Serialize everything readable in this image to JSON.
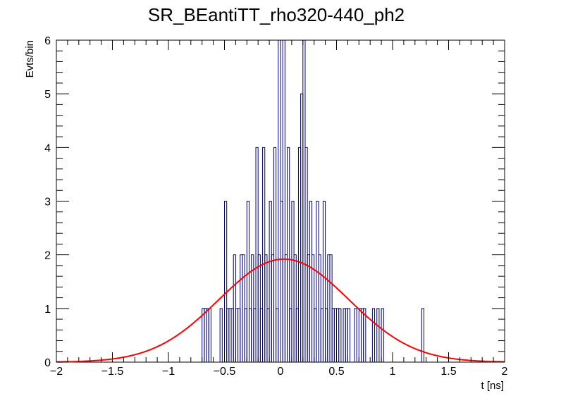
{
  "chart_data": {
    "type": "histogram",
    "title": "SR_BEantiTT_rho320-440_ph2",
    "xlabel": "t [ns]",
    "ylabel": "Evts/bin",
    "xlim": [
      -2,
      2
    ],
    "ylim": [
      0,
      6
    ],
    "x_ticks": [
      -2,
      -1.5,
      -1,
      -0.5,
      0,
      0.5,
      1,
      1.5,
      2
    ],
    "x_tick_labels": [
      "−2",
      "−1.5",
      "−1",
      "−0.5",
      "0",
      "0.5",
      "1",
      "1.5",
      "2"
    ],
    "y_ticks": [
      0,
      1,
      2,
      3,
      4,
      5,
      6
    ],
    "y_tick_labels": [
      "0",
      "1",
      "2",
      "3",
      "4",
      "5",
      "6"
    ],
    "bin_width": 0.02,
    "histogram": {
      "color": "#000080",
      "bins": [
        {
          "x": -0.7,
          "value": 1
        },
        {
          "x": -0.68,
          "value": 1
        },
        {
          "x": -0.66,
          "value": 1
        },
        {
          "x": -0.64,
          "value": 1
        },
        {
          "x": -0.54,
          "value": 1
        },
        {
          "x": -0.5,
          "value": 3
        },
        {
          "x": -0.48,
          "value": 1
        },
        {
          "x": -0.46,
          "value": 1
        },
        {
          "x": -0.44,
          "value": 1
        },
        {
          "x": -0.42,
          "value": 2
        },
        {
          "x": -0.4,
          "value": 1
        },
        {
          "x": -0.38,
          "value": 1
        },
        {
          "x": -0.36,
          "value": 2
        },
        {
          "x": -0.34,
          "value": 2
        },
        {
          "x": -0.32,
          "value": 1
        },
        {
          "x": -0.3,
          "value": 3
        },
        {
          "x": -0.28,
          "value": 1
        },
        {
          "x": -0.26,
          "value": 2
        },
        {
          "x": -0.24,
          "value": 1
        },
        {
          "x": -0.22,
          "value": 4
        },
        {
          "x": -0.2,
          "value": 2
        },
        {
          "x": -0.18,
          "value": 1
        },
        {
          "x": -0.16,
          "value": 4
        },
        {
          "x": -0.14,
          "value": 2
        },
        {
          "x": -0.12,
          "value": 1
        },
        {
          "x": -0.1,
          "value": 3
        },
        {
          "x": -0.08,
          "value": 2
        },
        {
          "x": -0.06,
          "value": 4
        },
        {
          "x": -0.04,
          "value": 1
        },
        {
          "x": -0.02,
          "value": 6
        },
        {
          "x": 0.0,
          "value": 3
        },
        {
          "x": 0.02,
          "value": 6
        },
        {
          "x": 0.04,
          "value": 2
        },
        {
          "x": 0.06,
          "value": 4
        },
        {
          "x": 0.08,
          "value": 1
        },
        {
          "x": 0.1,
          "value": 3
        },
        {
          "x": 0.12,
          "value": 2
        },
        {
          "x": 0.14,
          "value": 1
        },
        {
          "x": 0.16,
          "value": 4
        },
        {
          "x": 0.18,
          "value": 5
        },
        {
          "x": 0.2,
          "value": 6
        },
        {
          "x": 0.22,
          "value": 4
        },
        {
          "x": 0.24,
          "value": 2
        },
        {
          "x": 0.26,
          "value": 3
        },
        {
          "x": 0.28,
          "value": 2
        },
        {
          "x": 0.3,
          "value": 1
        },
        {
          "x": 0.32,
          "value": 3
        },
        {
          "x": 0.34,
          "value": 2
        },
        {
          "x": 0.36,
          "value": 1
        },
        {
          "x": 0.38,
          "value": 3
        },
        {
          "x": 0.4,
          "value": 1
        },
        {
          "x": 0.42,
          "value": 2
        },
        {
          "x": 0.44,
          "value": 2
        },
        {
          "x": 0.46,
          "value": 1
        },
        {
          "x": 0.48,
          "value": 1
        },
        {
          "x": 0.5,
          "value": 1
        },
        {
          "x": 0.52,
          "value": 1
        },
        {
          "x": 0.56,
          "value": 1
        },
        {
          "x": 0.58,
          "value": 1
        },
        {
          "x": 0.6,
          "value": 1
        },
        {
          "x": 0.66,
          "value": 1
        },
        {
          "x": 0.7,
          "value": 1
        },
        {
          "x": 0.72,
          "value": 1
        },
        {
          "x": 0.74,
          "value": 1
        },
        {
          "x": 0.82,
          "value": 1
        },
        {
          "x": 0.86,
          "value": 1
        },
        {
          "x": 0.9,
          "value": 1
        },
        {
          "x": 1.26,
          "value": 1
        }
      ]
    },
    "fit": {
      "type": "gaussian",
      "color": "#ff0000",
      "amplitude": 1.92,
      "mean": 0.03,
      "sigma": 0.58
    },
    "grid": false,
    "legend": "none"
  }
}
